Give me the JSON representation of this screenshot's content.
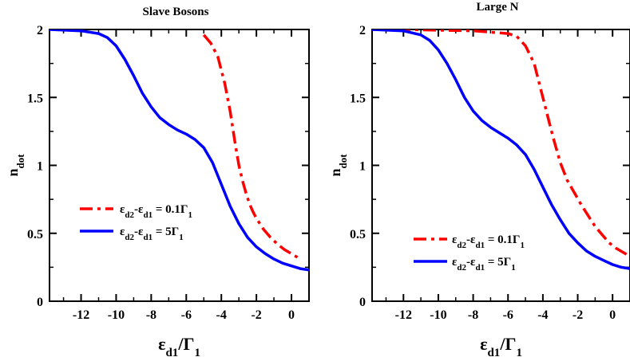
{
  "chart_data": [
    {
      "type": "line",
      "title": "Slave Bosons",
      "xlabel": {
        "main": "ε",
        "sub": "d1",
        "sep": "/",
        "main2": "Γ",
        "sub2": "1"
      },
      "ylabel": {
        "main": "n",
        "sub": "dot"
      },
      "xlim": [
        -13.8,
        1
      ],
      "ylim": [
        0,
        2
      ],
      "xticks": [
        -12,
        -10,
        -8,
        -6,
        -4,
        -2,
        0
      ],
      "xtick_labels": [
        "-12",
        "-10",
        "-8",
        "-6",
        "-4",
        "-2",
        "0"
      ],
      "yticks": [
        0,
        0.5,
        1,
        1.5,
        2
      ],
      "ytick_labels": [
        "0",
        "0.5",
        "1",
        "1.5",
        "2"
      ],
      "legend_position": "center-left",
      "series": [
        {
          "name": {
            "a": "ε",
            "a_sub": "d2",
            "dash": "-",
            "b": "ε",
            "b_sub": "d1",
            "rest": " = 0.1Γ",
            "rest_sub": "1"
          },
          "color": "#ff0000",
          "style": "dashdot",
          "x": [
            -5.0,
            -4.6,
            -4.2,
            -3.8,
            -3.5,
            -3.2,
            -3.0,
            -2.8,
            -2.6,
            -2.4,
            -2.2,
            -2.0,
            -1.6,
            -1.2,
            -0.8,
            -0.4,
            0.0,
            0.5
          ],
          "y": [
            1.96,
            1.9,
            1.8,
            1.6,
            1.4,
            1.15,
            1.0,
            0.89,
            0.8,
            0.72,
            0.66,
            0.61,
            0.53,
            0.47,
            0.42,
            0.38,
            0.35,
            0.31
          ]
        },
        {
          "name": {
            "a": "ε",
            "a_sub": "d2",
            "dash": "-",
            "b": "ε",
            "b_sub": "d1",
            "rest": " = 5Γ",
            "rest_sub": "1"
          },
          "color": "#0000ff",
          "style": "solid",
          "x": [
            -13.8,
            -12.0,
            -11.0,
            -10.5,
            -10.0,
            -9.5,
            -9.0,
            -8.5,
            -8.0,
            -7.5,
            -7.0,
            -6.5,
            -6.0,
            -5.5,
            -5.0,
            -4.5,
            -4.0,
            -3.5,
            -3.0,
            -2.5,
            -2.0,
            -1.5,
            -1.0,
            -0.5,
            0.0,
            0.5,
            1.0
          ],
          "y": [
            2.0,
            1.99,
            1.97,
            1.94,
            1.88,
            1.78,
            1.66,
            1.53,
            1.43,
            1.35,
            1.3,
            1.26,
            1.23,
            1.19,
            1.13,
            1.02,
            0.86,
            0.7,
            0.57,
            0.47,
            0.4,
            0.35,
            0.31,
            0.28,
            0.26,
            0.24,
            0.23
          ]
        }
      ]
    },
    {
      "type": "line",
      "title": "Large N",
      "xlabel": {
        "main": "ε",
        "sub": "d1",
        "sep": "/",
        "main2": "Γ",
        "sub2": "1"
      },
      "ylabel": {
        "main": "n",
        "sub": "dot"
      },
      "xlim": [
        -13.8,
        1
      ],
      "ylim": [
        0,
        2
      ],
      "xticks": [
        -12,
        -10,
        -8,
        -6,
        -4,
        -2,
        0
      ],
      "xtick_labels": [
        "-12",
        "-10",
        "-8",
        "-6",
        "-4",
        "-2",
        "0"
      ],
      "yticks": [
        0,
        0.5,
        1,
        1.5,
        2
      ],
      "ytick_labels": [
        "0",
        "0.5",
        "1",
        "1.5",
        "2"
      ],
      "legend_position": "bottom-center",
      "series": [
        {
          "name": {
            "a": "ε",
            "a_sub": "d2",
            "dash": "-",
            "b": "ε",
            "b_sub": "d1",
            "rest": " = 0.1Γ",
            "rest_sub": "1"
          },
          "color": "#ff0000",
          "style": "dashdot",
          "x": [
            -13.8,
            -12.0,
            -10.0,
            -8.0,
            -6.0,
            -5.5,
            -5.0,
            -4.5,
            -4.2,
            -4.0,
            -3.7,
            -3.4,
            -3.0,
            -2.6,
            -2.2,
            -1.8,
            -1.4,
            -1.0,
            -0.6,
            -0.2,
            0.2,
            0.6,
            1.0
          ],
          "y": [
            2.0,
            2.0,
            1.995,
            1.99,
            1.97,
            1.95,
            1.88,
            1.75,
            1.6,
            1.5,
            1.35,
            1.2,
            1.02,
            0.89,
            0.8,
            0.71,
            0.63,
            0.55,
            0.49,
            0.43,
            0.39,
            0.36,
            0.33
          ]
        },
        {
          "name": {
            "a": "ε",
            "a_sub": "d2",
            "dash": "-",
            "b": "ε",
            "b_sub": "d1",
            "rest": " = 5Γ",
            "rest_sub": "1"
          },
          "color": "#0000ff",
          "style": "solid",
          "x": [
            -13.8,
            -12.0,
            -11.0,
            -10.5,
            -10.0,
            -9.5,
            -9.0,
            -8.5,
            -8.0,
            -7.5,
            -7.0,
            -6.5,
            -6.0,
            -5.5,
            -5.0,
            -4.5,
            -4.0,
            -3.5,
            -3.0,
            -2.5,
            -2.0,
            -1.5,
            -1.0,
            -0.5,
            0.0,
            0.5,
            1.0
          ],
          "y": [
            2.0,
            1.99,
            1.96,
            1.92,
            1.85,
            1.75,
            1.63,
            1.5,
            1.4,
            1.33,
            1.28,
            1.24,
            1.2,
            1.15,
            1.08,
            0.97,
            0.84,
            0.71,
            0.6,
            0.5,
            0.43,
            0.37,
            0.33,
            0.3,
            0.27,
            0.25,
            0.24
          ]
        }
      ]
    }
  ]
}
